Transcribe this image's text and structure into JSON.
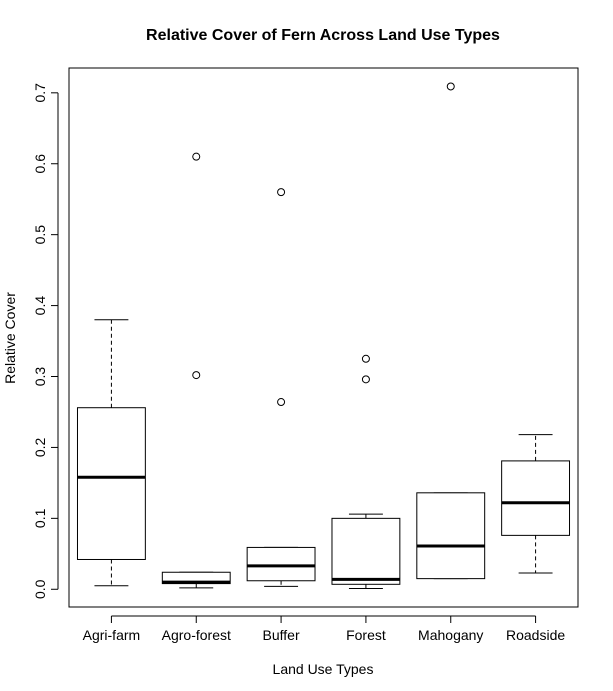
{
  "chart_data": {
    "type": "box",
    "title": "Relative Cover of Fern Across Land Use Types",
    "xlabel": "Land Use Types",
    "ylabel": "Relative Cover",
    "ylim": [
      -0.025,
      0.735
    ],
    "yticks": [
      "0.0",
      "0.1",
      "0.2",
      "0.3",
      "0.4",
      "0.5",
      "0.6",
      "0.7"
    ],
    "categories": [
      "Agri-farm",
      "Agro-forest",
      "Buffer",
      "Forest",
      "Mahogany",
      "Roadside"
    ],
    "boxes": [
      {
        "name": "Agri-farm",
        "whisker_low": 0.005,
        "q1": 0.042,
        "median": 0.158,
        "q3": 0.256,
        "whisker_high": 0.38,
        "outliers": []
      },
      {
        "name": "Agro-forest",
        "whisker_low": 0.002,
        "q1": 0.008,
        "median": 0.01,
        "q3": 0.024,
        "whisker_high": 0.024,
        "outliers": [
          0.302,
          0.61
        ]
      },
      {
        "name": "Buffer",
        "whisker_low": 0.004,
        "q1": 0.012,
        "median": 0.033,
        "q3": 0.059,
        "whisker_high": 0.059,
        "outliers": [
          0.264,
          0.56
        ]
      },
      {
        "name": "Forest",
        "whisker_low": 0.001,
        "q1": 0.007,
        "median": 0.014,
        "q3": 0.1,
        "whisker_high": 0.106,
        "outliers": [
          0.296,
          0.325
        ]
      },
      {
        "name": "Mahogany",
        "whisker_low": 0.015,
        "q1": 0.015,
        "median": 0.061,
        "q3": 0.136,
        "whisker_high": 0.136,
        "outliers": [
          0.709
        ]
      },
      {
        "name": "Roadside",
        "whisker_low": 0.023,
        "q1": 0.076,
        "median": 0.122,
        "q3": 0.181,
        "whisker_high": 0.218,
        "outliers": []
      }
    ]
  }
}
